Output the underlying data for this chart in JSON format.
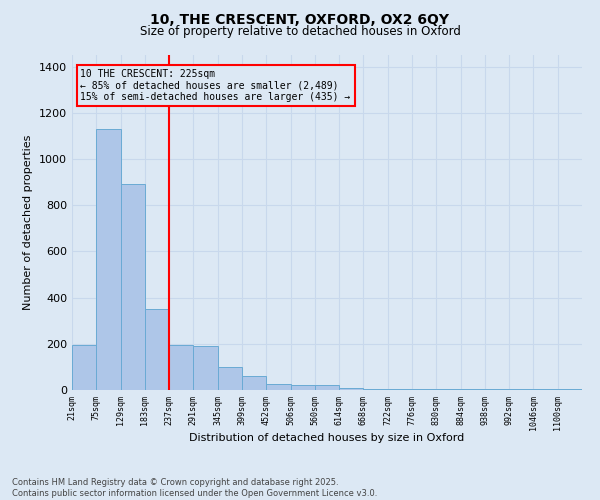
{
  "title_line1": "10, THE CRESCENT, OXFORD, OX2 6QY",
  "title_line2": "Size of property relative to detached houses in Oxford",
  "xlabel": "Distribution of detached houses by size in Oxford",
  "ylabel": "Number of detached properties",
  "categories": [
    "21sqm",
    "75sqm",
    "129sqm",
    "183sqm",
    "237sqm",
    "291sqm",
    "345sqm",
    "399sqm",
    "452sqm",
    "506sqm",
    "560sqm",
    "614sqm",
    "668sqm",
    "722sqm",
    "776sqm",
    "830sqm",
    "884sqm",
    "938sqm",
    "992sqm",
    "1046sqm",
    "1100sqm"
  ],
  "bar_heights": [
    195,
    1130,
    890,
    350,
    195,
    190,
    100,
    60,
    25,
    20,
    20,
    10,
    5,
    5,
    5,
    5,
    5,
    5,
    5,
    5,
    5
  ],
  "bar_color": "#aec6e8",
  "bar_edgecolor": "#6aaad4",
  "grid_color": "#c8d8ec",
  "background_color": "#dce8f4",
  "vline_x_index": 4,
  "vline_color": "red",
  "annotation_text": "10 THE CRESCENT: 225sqm\n← 85% of detached houses are smaller (2,489)\n15% of semi-detached houses are larger (435) →",
  "annotation_box_color": "red",
  "ylim": [
    0,
    1450
  ],
  "yticks": [
    0,
    200,
    400,
    600,
    800,
    1000,
    1200,
    1400
  ],
  "footer_line1": "Contains HM Land Registry data © Crown copyright and database right 2025.",
  "footer_line2": "Contains public sector information licensed under the Open Government Licence v3.0."
}
